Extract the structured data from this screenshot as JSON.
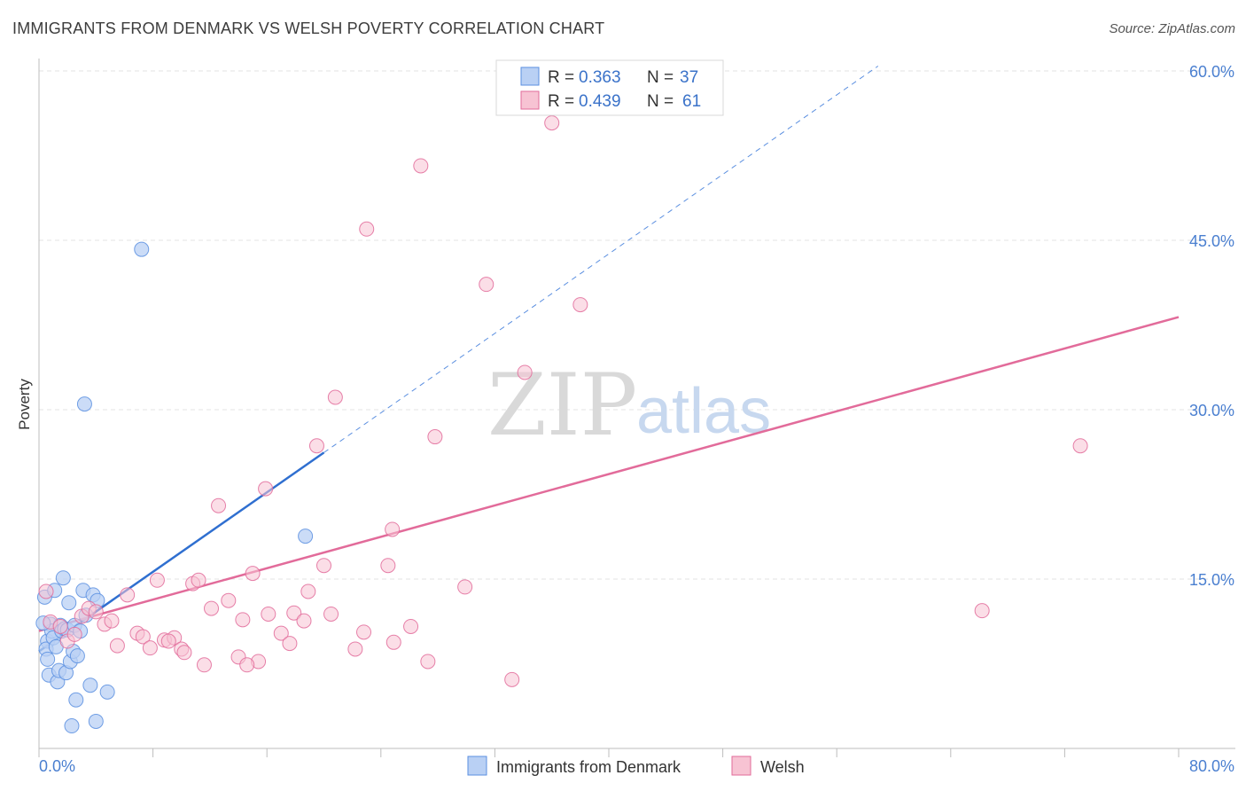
{
  "header": {
    "title": "IMMIGRANTS FROM DENMARK VS WELSH POVERTY CORRELATION CHART",
    "source": "Source: ZipAtlas.com"
  },
  "colors": {
    "series_blue": "#5b8fe0",
    "series_blue_fill": "#b9d0f4",
    "series_pink": "#e26b9a",
    "series_pink_fill": "#f7c3d3",
    "axis_label": "#4a7fd0",
    "grid": "#e3e3e3"
  },
  "watermark": {
    "zip": "ZIP",
    "atlas": "atlas"
  },
  "legend": {
    "rows": [
      {
        "r_label": "R =",
        "r_value": "0.363",
        "n_label": "N =",
        "n_value": "37"
      },
      {
        "r_label": "R =",
        "r_value": "0.439",
        "n_label": "N =",
        "n_value": "61"
      }
    ]
  },
  "bottom_legend": {
    "items": [
      "Immigrants from Denmark",
      "Welsh"
    ]
  },
  "chart_data": {
    "type": "scatter",
    "title": "IMMIGRANTS FROM DENMARK VS WELSH POVERTY CORRELATION CHART",
    "xlabel": "",
    "ylabel": "Poverty",
    "xlim": [
      0,
      80
    ],
    "ylim": [
      0,
      60
    ],
    "x_tick_labels": [
      "0.0%",
      "80.0%"
    ],
    "y_ticks": [
      15,
      30,
      45,
      60
    ],
    "y_tick_labels": [
      "15.0%",
      "30.0%",
      "45.0%",
      "60.0%"
    ],
    "grid": true,
    "legend_position": "top-center",
    "series": [
      {
        "name": "Immigrants from Denmark",
        "r": 0.363,
        "n": 37,
        "trend": {
          "x0": 0,
          "y0": 8.6,
          "x1": 20,
          "y1": 26.2,
          "extrapolate_to_x": 58.9
        },
        "points": [
          [
            0.4,
            13.4
          ],
          [
            0.6,
            9.5
          ],
          [
            0.5,
            8.8
          ],
          [
            0.6,
            7.9
          ],
          [
            0.7,
            6.5
          ],
          [
            0.8,
            11.0
          ],
          [
            0.9,
            10.4
          ],
          [
            1.0,
            9.8
          ],
          [
            1.1,
            14.0
          ],
          [
            1.2,
            9.0
          ],
          [
            1.3,
            5.9
          ],
          [
            1.4,
            6.9
          ],
          [
            1.5,
            10.9
          ],
          [
            1.6,
            10.4
          ],
          [
            1.7,
            15.1
          ],
          [
            1.8,
            10.6
          ],
          [
            1.9,
            6.7
          ],
          [
            2.0,
            10.5
          ],
          [
            2.1,
            12.9
          ],
          [
            2.2,
            7.7
          ],
          [
            2.3,
            2.0
          ],
          [
            2.4,
            8.6
          ],
          [
            2.5,
            10.9
          ],
          [
            2.6,
            4.3
          ],
          [
            2.7,
            8.2
          ],
          [
            2.9,
            10.4
          ],
          [
            3.1,
            14.0
          ],
          [
            3.2,
            30.5
          ],
          [
            3.3,
            11.8
          ],
          [
            3.6,
            5.6
          ],
          [
            3.8,
            13.6
          ],
          [
            4.0,
            2.4
          ],
          [
            4.1,
            13.1
          ],
          [
            4.8,
            5.0
          ],
          [
            7.2,
            44.2
          ],
          [
            18.7,
            18.8
          ],
          [
            0.3,
            11.1
          ]
        ]
      },
      {
        "name": "Welsh",
        "r": 0.439,
        "n": 61,
        "trend": {
          "x0": 0,
          "y0": 10.4,
          "x1": 80,
          "y1": 38.2
        },
        "points": [
          [
            0.5,
            13.9
          ],
          [
            0.8,
            11.2
          ],
          [
            1.5,
            10.8
          ],
          [
            2.0,
            9.5
          ],
          [
            2.5,
            10.1
          ],
          [
            3.0,
            11.7
          ],
          [
            3.5,
            12.4
          ],
          [
            4.0,
            12.1
          ],
          [
            4.6,
            11.0
          ],
          [
            5.1,
            11.3
          ],
          [
            5.5,
            9.1
          ],
          [
            6.2,
            13.6
          ],
          [
            6.9,
            10.2
          ],
          [
            7.3,
            9.9
          ],
          [
            7.8,
            8.9
          ],
          [
            8.3,
            14.9
          ],
          [
            8.8,
            9.6
          ],
          [
            9.5,
            9.8
          ],
          [
            10.0,
            8.8
          ],
          [
            10.2,
            8.5
          ],
          [
            10.8,
            14.6
          ],
          [
            11.2,
            14.9
          ],
          [
            11.6,
            7.4
          ],
          [
            12.1,
            12.4
          ],
          [
            12.6,
            21.5
          ],
          [
            13.3,
            13.1
          ],
          [
            14.0,
            8.1
          ],
          [
            14.3,
            11.4
          ],
          [
            15.0,
            15.5
          ],
          [
            15.4,
            7.7
          ],
          [
            15.9,
            23.0
          ],
          [
            16.1,
            11.9
          ],
          [
            17.0,
            10.2
          ],
          [
            17.6,
            9.3
          ],
          [
            17.9,
            12.0
          ],
          [
            18.6,
            11.3
          ],
          [
            18.9,
            13.9
          ],
          [
            19.5,
            26.8
          ],
          [
            20.0,
            16.2
          ],
          [
            20.5,
            11.9
          ],
          [
            20.8,
            31.1
          ],
          [
            22.2,
            8.8
          ],
          [
            22.8,
            10.3
          ],
          [
            23.0,
            46.0
          ],
          [
            24.5,
            16.2
          ],
          [
            24.8,
            19.4
          ],
          [
            24.9,
            9.4
          ],
          [
            26.1,
            10.8
          ],
          [
            26.8,
            51.6
          ],
          [
            27.3,
            7.7
          ],
          [
            27.8,
            27.6
          ],
          [
            29.9,
            14.3
          ],
          [
            31.4,
            41.1
          ],
          [
            33.2,
            6.1
          ],
          [
            34.1,
            33.3
          ],
          [
            36.0,
            55.4
          ],
          [
            38.0,
            39.3
          ],
          [
            66.2,
            12.2
          ],
          [
            73.1,
            26.8
          ],
          [
            14.6,
            7.4
          ],
          [
            9.1,
            9.5
          ]
        ]
      }
    ]
  }
}
